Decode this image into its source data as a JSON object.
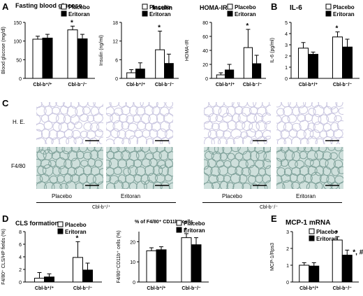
{
  "panel_labels": {
    "a": "A",
    "b": "B",
    "c": "C",
    "d": "D",
    "e": "E"
  },
  "legend": {
    "placebo": "Placebo",
    "eritoran": "Eritoran"
  },
  "genotypes": {
    "wt": "Cbl-b⁺/⁺",
    "ko": "Cbl-b⁻/⁻"
  },
  "colors": {
    "placebo": "#ffffff",
    "eritoran": "#000000",
    "stroke": "#000000",
    "he_tissue": "#c9c6e0",
    "f480_tissue": "#cfe0dc"
  },
  "icons": {
    "significance": "asterisk",
    "hash": "hash"
  },
  "microscopy": {
    "rows": [
      "H. E.",
      "F4/80"
    ],
    "cols": [
      "Placebo",
      "Eritoran",
      "Placebo",
      "Eritoran"
    ],
    "groups": [
      "Cbl-b⁺/⁺",
      "Cbl-b⁻/⁻"
    ]
  },
  "chart_data": [
    {
      "id": "fbg",
      "type": "bar",
      "title": "Fasting blood glucose",
      "ylabel": "Blood glucose (mg/dl)",
      "ylim": [
        0,
        150
      ],
      "yticks": [
        0,
        50,
        100,
        150
      ],
      "categories": [
        "Cbl-b⁺/⁺",
        "Cbl-b⁻/⁻"
      ],
      "series": [
        {
          "name": "Placebo",
          "values": [
            105,
            130
          ],
          "errors": [
            8,
            10
          ]
        },
        {
          "name": "Eritoran",
          "values": [
            108,
            106
          ],
          "errors": [
            10,
            12
          ]
        }
      ],
      "annotations": [
        {
          "series": 0,
          "category": 1,
          "text": "*"
        }
      ]
    },
    {
      "id": "insulin",
      "type": "bar",
      "title": "Insulin",
      "ylabel": "Insulin (ng/ml)",
      "ylim": [
        0,
        18
      ],
      "yticks": [
        0,
        6,
        12,
        18
      ],
      "categories": [
        "Cbl-b⁺/⁺",
        "Cbl-b⁻/⁻"
      ],
      "series": [
        {
          "name": "Placebo",
          "values": [
            1.8,
            9.2
          ],
          "errors": [
            1,
            6
          ]
        },
        {
          "name": "Eritoran",
          "values": [
            3,
            4.8
          ],
          "errors": [
            2,
            3
          ]
        }
      ],
      "annotations": [
        {
          "series": 0,
          "category": 1,
          "text": "*"
        }
      ]
    },
    {
      "id": "homa",
      "type": "bar",
      "title": "HOMA-IR",
      "ylabel": "HOMA-IR",
      "ylim": [
        0,
        80
      ],
      "yticks": [
        0,
        20,
        40,
        60,
        80
      ],
      "categories": [
        "Cbl-b⁺/⁺",
        "Cbl-b⁻/⁻"
      ],
      "series": [
        {
          "name": "Placebo",
          "values": [
            5,
            44
          ],
          "errors": [
            3,
            26
          ]
        },
        {
          "name": "Eritoran",
          "values": [
            12,
            21
          ],
          "errors": [
            8,
            12
          ]
        }
      ],
      "annotations": [
        {
          "series": 0,
          "category": 1,
          "text": "*"
        }
      ]
    },
    {
      "id": "il6",
      "type": "bar",
      "title": "IL-6",
      "ylabel": "IL-6 (pg/ml)",
      "ylim": [
        0,
        5
      ],
      "yticks": [
        0,
        1,
        2,
        3,
        4,
        5
      ],
      "categories": [
        "Cbl-b⁺/⁺",
        "Cbl-b⁻/⁻"
      ],
      "series": [
        {
          "name": "Placebo",
          "values": [
            2.7,
            3.7
          ],
          "errors": [
            0.5,
            0.45
          ]
        },
        {
          "name": "Eritoran",
          "values": [
            2.15,
            2.8
          ],
          "errors": [
            0.2,
            0.7
          ]
        }
      ],
      "annotations": [
        {
          "series": 0,
          "category": 1,
          "text": "*"
        }
      ]
    },
    {
      "id": "cls",
      "type": "bar",
      "title": "CLS formation",
      "ylabel": "F4/80⁺ CLS/HP fields (%)",
      "ylim": [
        0,
        8
      ],
      "yticks": [
        0,
        2,
        4,
        6,
        8
      ],
      "categories": [
        "Cbl-b⁺/⁺",
        "Cbl-b⁻/⁻"
      ],
      "series": [
        {
          "name": "Placebo",
          "values": [
            0.6,
            3.9
          ],
          "errors": [
            0.9,
            2.5
          ]
        },
        {
          "name": "Eritoran",
          "values": [
            0.8,
            1.9
          ],
          "errors": [
            0.5,
            1.1
          ]
        }
      ],
      "annotations": [
        {
          "series": 0,
          "category": 1,
          "text": "*"
        }
      ]
    },
    {
      "id": "f480",
      "type": "bar",
      "title": "% of F4/80⁺ CD11b⁺ cells",
      "ylabel": "F4/80⁺CD11b⁺ cells (%)",
      "ylim": [
        0,
        25
      ],
      "yticks": [
        0,
        10,
        20
      ],
      "categories": [
        "Cbl-b⁺/⁺",
        "Cbl-b⁻/⁻"
      ],
      "series": [
        {
          "name": "Placebo",
          "values": [
            15.5,
            22
          ],
          "errors": [
            1.5,
            2
          ]
        },
        {
          "name": "Eritoran",
          "values": [
            16,
            18.5
          ],
          "errors": [
            1.5,
            3.5
          ]
        }
      ],
      "annotations": [
        {
          "series": 0,
          "category": 1,
          "text": "*"
        }
      ]
    },
    {
      "id": "mcp1",
      "type": "bar",
      "title": "MCP-1 mRNA",
      "ylabel": "MCP-1/Rps3",
      "ylim": [
        0,
        3
      ],
      "yticks": [
        0,
        1,
        2,
        3
      ],
      "categories": [
        "Cbl-b⁺/⁺",
        "Cbl-b⁻/⁻"
      ],
      "series": [
        {
          "name": "Placebo",
          "values": [
            1.0,
            2.5
          ],
          "errors": [
            0.15,
            0.2
          ]
        },
        {
          "name": "Eritoran",
          "values": [
            0.95,
            1.6
          ],
          "errors": [
            0.2,
            0.3
          ]
        }
      ],
      "annotations": [
        {
          "series": 0,
          "category": 1,
          "text": "*"
        },
        {
          "series": 1,
          "category": 1,
          "text": "*, #"
        }
      ]
    }
  ]
}
